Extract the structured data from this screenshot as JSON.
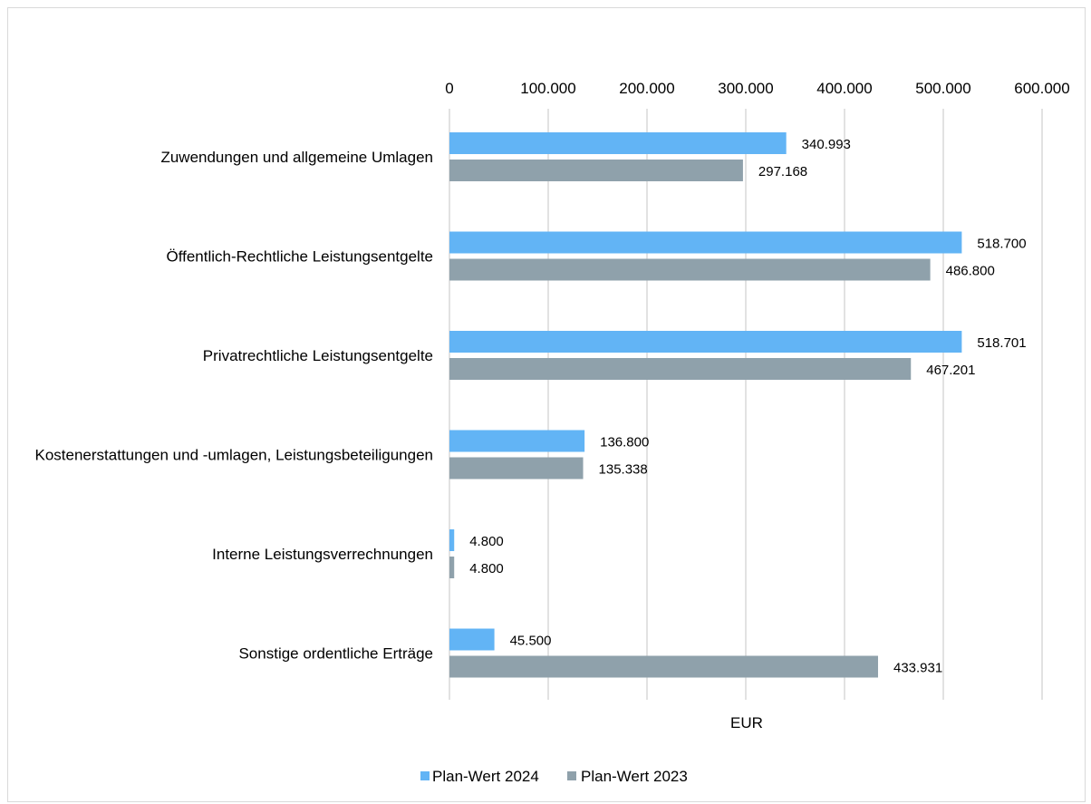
{
  "chart_data": {
    "type": "bar",
    "orientation": "horizontal",
    "title": "",
    "xlabel": "EUR",
    "ylabel": "",
    "xlim": [
      0,
      600000
    ],
    "x_ticks": [
      0,
      100000,
      200000,
      300000,
      400000,
      500000,
      600000
    ],
    "x_tick_labels": [
      "0",
      "100.000",
      "200.000",
      "300.000",
      "400.000",
      "500.000",
      "600.000"
    ],
    "grid": "vertical",
    "legend_position": "bottom",
    "categories": [
      "Zuwendungen und allgemeine Umlagen",
      "Öffentlich-Rechtliche Leistungsentgelte",
      "Privatrechtliche Leistungsentgelte",
      "Kostenerstattungen und -umlagen, Leistungsbeteiligungen",
      "Interne Leistungsverrechnungen",
      "Sonstige ordentliche Erträge"
    ],
    "series": [
      {
        "name": "Plan-Wert 2024",
        "color": "#62b4f5",
        "values": [
          340993,
          518700,
          518701,
          136800,
          4800,
          45500
        ],
        "labels": [
          "340.993",
          "518.700",
          "518.701",
          "136.800",
          "4.800",
          "45.500"
        ]
      },
      {
        "name": "Plan-Wert 2023",
        "color": "#8fa1ab",
        "values": [
          297168,
          486800,
          467201,
          135338,
          4800,
          433931
        ],
        "labels": [
          "297.168",
          "486.800",
          "467.201",
          "135.338",
          "4.800",
          "433.931"
        ]
      }
    ]
  }
}
